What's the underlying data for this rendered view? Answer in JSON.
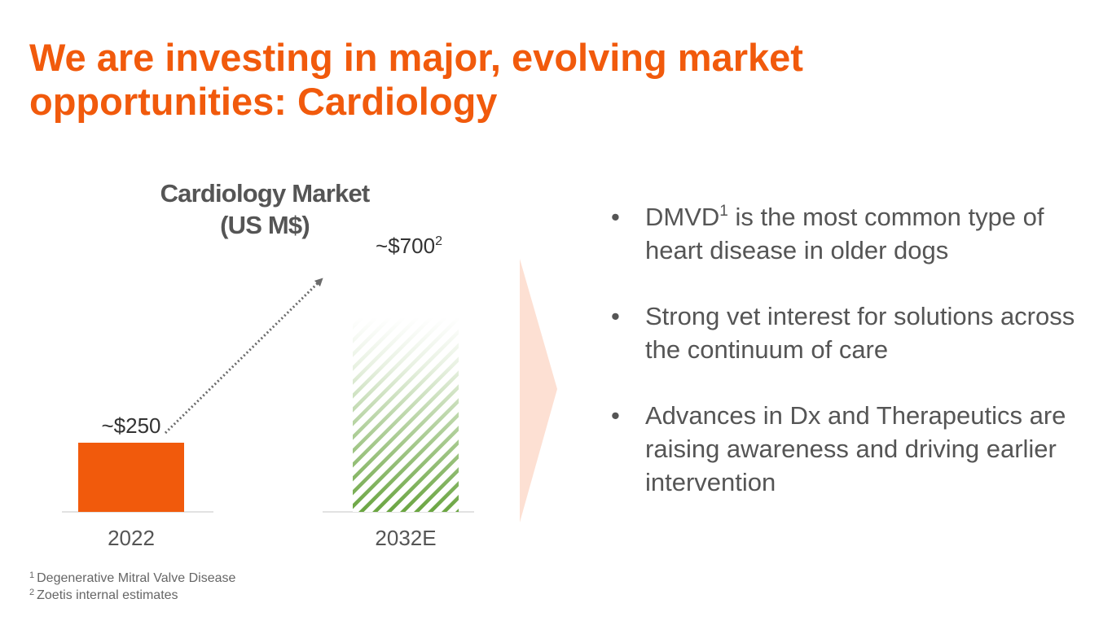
{
  "slide": {
    "title_line1": "We are investing in major, evolving market",
    "title_line2": "opportunities: Cardiology"
  },
  "colors": {
    "accent": "#f15a0c",
    "projection_green": "#6aa541",
    "text_gray": "#555555",
    "arrow_fill": "#fde0d3"
  },
  "chart_data": {
    "type": "bar",
    "title_line1": "Cardiology Market",
    "title_line2": "(US M$)",
    "categories": [
      "2022",
      "2032E"
    ],
    "values": [
      250,
      700
    ],
    "data_labels": [
      "~$250",
      "~$700"
    ],
    "data_label_superscripts": [
      "",
      "2"
    ],
    "styles": [
      "solid",
      "hatched"
    ],
    "ylim": [
      0,
      1000
    ],
    "trend_arrow": {
      "from": "2022",
      "to": "2032E",
      "style": "dotted"
    }
  },
  "bullets": [
    {
      "text_before": "DMVD",
      "superscript": "1",
      "text_after": " is the most common type of heart disease in older dogs"
    },
    {
      "text_before": "Strong vet interest for solutions across the continuum of care",
      "superscript": "",
      "text_after": ""
    },
    {
      "text_before": "Advances in Dx and Therapeutics are raising awareness and driving earlier intervention",
      "superscript": "",
      "text_after": ""
    }
  ],
  "bullet_symbol": "•",
  "footnotes": [
    {
      "marker": "1",
      "text": "Degenerative Mitral Valve Disease"
    },
    {
      "marker": "2",
      "text": "Zoetis internal estimates"
    }
  ]
}
